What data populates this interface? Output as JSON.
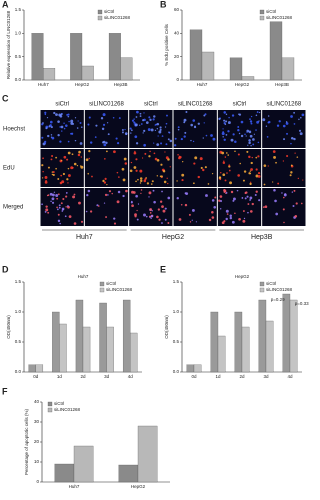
{
  "chart_data": [
    {
      "label": "A",
      "type": "bar",
      "ylabel": "Relative expression of LINC01268",
      "categories": [
        "Huh7",
        "HepG2",
        "Hep3B"
      ],
      "series": [
        {
          "name": "siCtrl",
          "color": "#8a8a8a",
          "values": [
            1.0,
            1.0,
            1.0
          ]
        },
        {
          "name": "siLINC01268",
          "color": "#b8b8b8",
          "values": [
            0.25,
            0.3,
            0.48
          ]
        }
      ],
      "ylim": [
        0,
        1.5
      ],
      "yticks": [
        {
          "value": 0,
          "label": "0.0"
        },
        {
          "value": 0.5,
          "label": "0.5"
        },
        {
          "value": 1,
          "label": "1.0"
        },
        {
          "value": 1.5,
          "label": "1.5"
        }
      ],
      "legend": "upper right"
    },
    {
      "label": "B",
      "type": "bar",
      "ylabel": "% EdU positive Cells",
      "categories": [
        "Huh7",
        "HepG2",
        "Hep3B"
      ],
      "series": [
        {
          "name": "siCtrl",
          "color": "#8a8a8a",
          "values": [
            43,
            19,
            50
          ]
        },
        {
          "name": "siLINC01268",
          "color": "#b8b8b8",
          "values": [
            24,
            3,
            19
          ]
        }
      ],
      "ylim": [
        0,
        60
      ],
      "yticks": [
        0,
        20,
        40,
        60
      ],
      "legend": "upper right"
    },
    {
      "label": "D",
      "type": "bar",
      "title": "Huh7",
      "ylabel": "OD(450nm)",
      "categories": [
        "0d",
        "1d",
        "2d",
        "3d",
        "4d"
      ],
      "series": [
        {
          "name": "siCtrl",
          "color": "#9a9a9a",
          "values": [
            0.12,
            1.0,
            1.2,
            1.15,
            1.2
          ]
        },
        {
          "name": "siLINC01268",
          "color": "#c4c4c4",
          "values": [
            0.12,
            0.8,
            0.75,
            0.75,
            0.65
          ]
        }
      ],
      "ylim": [
        0,
        1.5
      ],
      "yticks": [
        {
          "value": 0,
          "label": "0.0"
        },
        {
          "value": 0.5,
          "label": "0.5"
        },
        {
          "value": 1,
          "label": "1.0"
        },
        {
          "value": 1.5,
          "label": "1.5"
        }
      ],
      "legend": "upper right"
    },
    {
      "label": "E",
      "type": "bar",
      "title": "HepG2",
      "ylabel": "OD(450nm)",
      "categories": [
        "0d",
        "1d",
        "2d",
        "3d",
        "4d"
      ],
      "series": [
        {
          "name": "siCtrl",
          "color": "#9a9a9a",
          "values": [
            0.12,
            1.0,
            1.0,
            1.2,
            1.3
          ]
        },
        {
          "name": "siLINC01268",
          "color": "#c4c4c4",
          "values": [
            0.12,
            0.6,
            0.75,
            0.85,
            1.2
          ]
        }
      ],
      "annotations": [
        "p=0.29",
        "p=0.33"
      ],
      "ylim": [
        0,
        1.5
      ],
      "yticks": [
        {
          "value": 0,
          "label": "0.0"
        },
        {
          "value": 0.5,
          "label": "0.5"
        },
        {
          "value": 1,
          "label": "1.0"
        },
        {
          "value": 1.5,
          "label": "1.5"
        }
      ],
      "legend": "upper right"
    },
    {
      "label": "F",
      "type": "bar",
      "ylabel": "Percentage of apoptotic cells (%)",
      "categories": [
        "Huh7",
        "HepG2"
      ],
      "series": [
        {
          "name": "siCtrl",
          "color": "#8a8a8a",
          "values": [
            9,
            8.5
          ]
        },
        {
          "name": "siLINC01268",
          "color": "#b8b8b8",
          "values": [
            18,
            28
          ]
        }
      ],
      "ylim": [
        0,
        40
      ],
      "yticks": [
        0,
        10,
        20,
        30,
        40
      ],
      "legend": "upper left"
    }
  ],
  "image_panel": {
    "label": "C",
    "rows": [
      "Hoechst",
      "EdU",
      "Merged"
    ],
    "columns": [
      "siCtrl",
      "siLINC01268",
      "siCtrl",
      "siLINC01268",
      "siCtrl",
      "siLINC01268"
    ],
    "cell_lines": [
      "Huh7",
      "HepG2",
      "Hep3B"
    ]
  }
}
